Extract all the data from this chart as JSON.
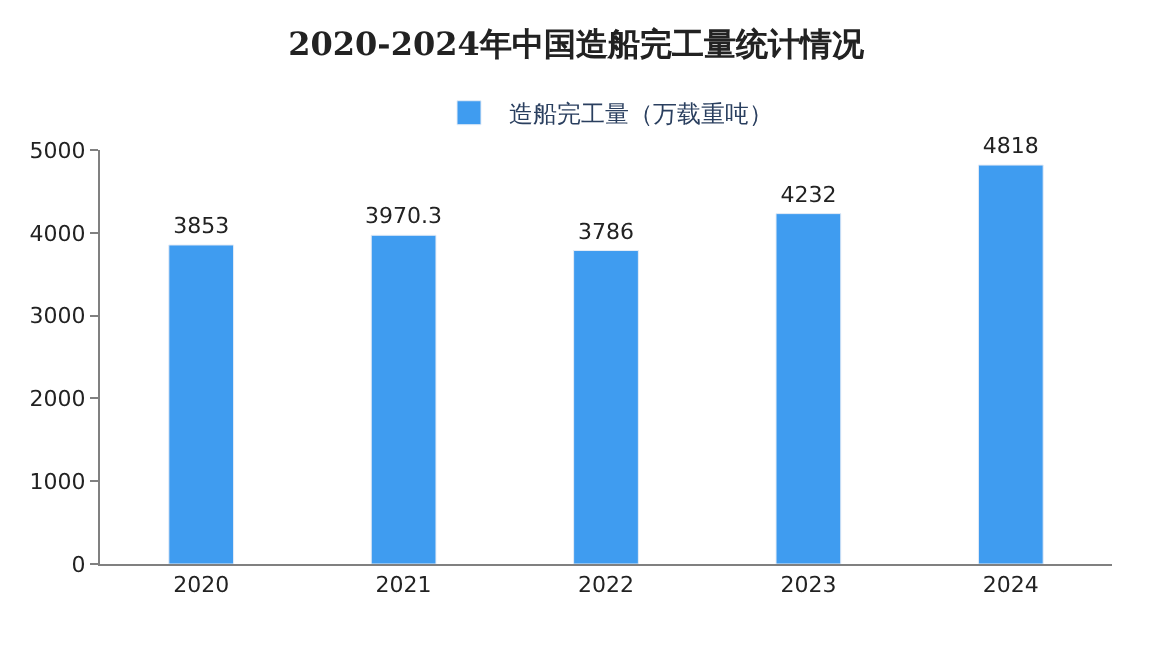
{
  "chart_data": {
    "type": "bar",
    "title": "2020-2024年中国造船完工量统计情况",
    "categories": [
      "2020",
      "2021",
      "2022",
      "2023",
      "2024"
    ],
    "series": [
      {
        "name": "造船完工量（万载重吨）",
        "color": "#3f9cf0",
        "values": [
          3853,
          3970.3,
          3786,
          4232,
          4818
        ]
      }
    ],
    "ylim": [
      0,
      5000
    ],
    "yticks": [
      0,
      1000,
      2000,
      3000,
      4000,
      5000
    ],
    "legend": "top",
    "data_labels": true
  }
}
